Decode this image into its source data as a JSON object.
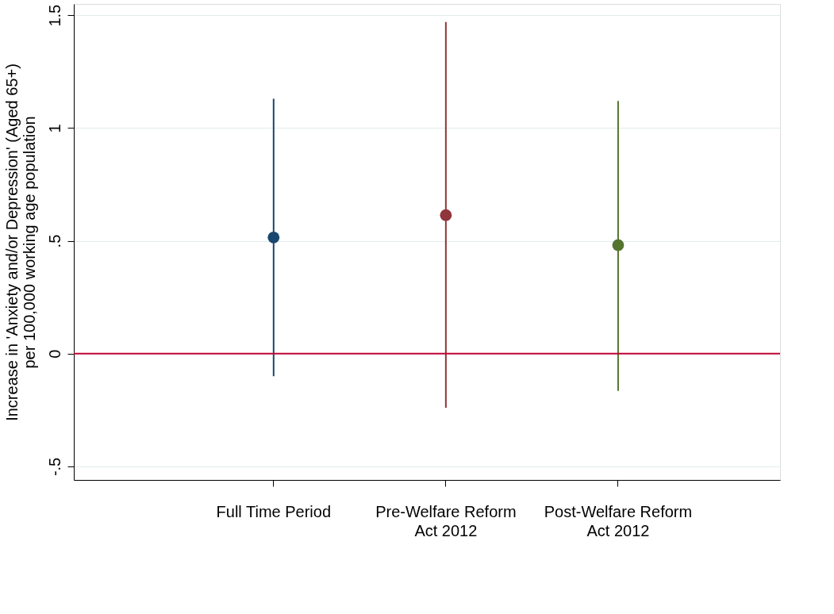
{
  "chart_data": {
    "type": "scatter",
    "ylabel": "Increase in 'Anxiety and/or Depression' (Aged 65+) per 100,000 working age population",
    "categories": [
      "Full Time Period",
      "Pre-Welfare Reform Act 2012",
      "Post-Welfare Reform Act 2012"
    ],
    "values": [
      0.515,
      0.614,
      0.481
    ],
    "errors": [
      [
        -0.1,
        1.13
      ],
      [
        -0.24,
        1.47
      ],
      [
        -0.165,
        1.12
      ]
    ],
    "colors": [
      "#1a476f",
      "#90353b",
      "#55752f"
    ],
    "ylim": [
      -0.56,
      1.55
    ],
    "yticks": [
      {
        "value": -0.5,
        "label": "-.5"
      },
      0,
      {
        "value": 0.5,
        "label": ".5"
      },
      1,
      1.5
    ],
    "ref_lines": [
      {
        "axis": "y",
        "value": 0,
        "color": "#c10534"
      }
    ],
    "grid": "y",
    "marker": "circle",
    "legend": false
  }
}
